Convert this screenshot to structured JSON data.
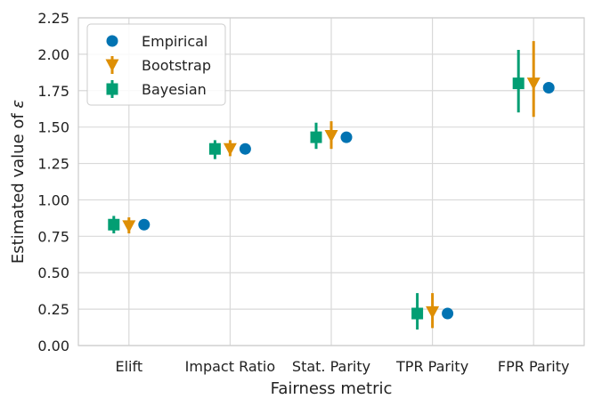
{
  "chart_data": {
    "type": "scatter",
    "xlabel": "Fairness metric",
    "ylabel_prefix": "Estimated value of ",
    "ylabel_symbol": "ε",
    "categories": [
      "Elift",
      "Impact Ratio",
      "Stat. Parity",
      "TPR Parity",
      "FPR Parity"
    ],
    "ylim": [
      0,
      2.25
    ],
    "yticks": [
      "0.00",
      "0.25",
      "0.50",
      "0.75",
      "1.00",
      "1.25",
      "1.50",
      "1.75",
      "2.00",
      "2.25"
    ],
    "grid": true,
    "legend_position": "top-left",
    "series": [
      {
        "name": "Empirical",
        "marker": "circle",
        "color": "#0173b2",
        "values": [
          0.83,
          1.35,
          1.43,
          0.22,
          1.77
        ]
      },
      {
        "name": "Bootstrap",
        "marker": "triangle-down",
        "color": "#de8f05",
        "values": [
          0.82,
          1.35,
          1.44,
          0.23,
          1.8
        ],
        "err_low": [
          0.77,
          1.3,
          1.35,
          0.12,
          1.57
        ],
        "err_high": [
          0.88,
          1.41,
          1.54,
          0.36,
          2.09
        ]
      },
      {
        "name": "Bayesian",
        "marker": "square",
        "color": "#029e73",
        "values": [
          0.83,
          1.35,
          1.43,
          0.22,
          1.8
        ],
        "err_low": [
          0.77,
          1.28,
          1.35,
          0.11,
          1.6
        ],
        "err_high": [
          0.89,
          1.41,
          1.53,
          0.36,
          2.03
        ]
      }
    ]
  }
}
